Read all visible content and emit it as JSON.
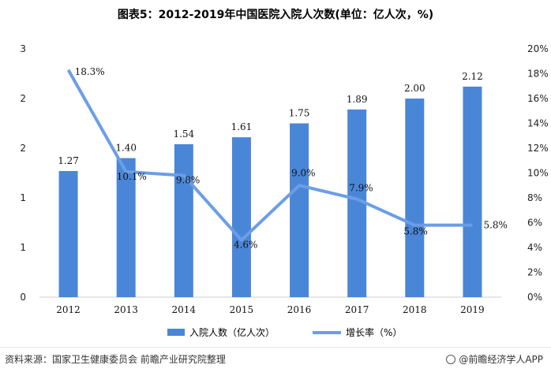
{
  "title": "图表5：2012-2019年中国医院入院人次数(单位：亿人次，%)",
  "legend": {
    "bar_label": "入院人数（亿人次）",
    "line_label": "增长率（%）"
  },
  "source": "资料来源：国家卫生健康委员会 前瞻产业研究院整理",
  "brand": "@前瞻经济学人APP",
  "colors": {
    "bar": "#4a86d8",
    "line": "#6b9ee6",
    "axis": "#cccccc"
  },
  "chart_data": {
    "type": "bar",
    "categories": [
      "2012",
      "2013",
      "2014",
      "2015",
      "2016",
      "2017",
      "2018",
      "2019"
    ],
    "series": [
      {
        "name": "入院人数（亿人次）",
        "type": "bar",
        "axis": "left",
        "values": [
          1.27,
          1.4,
          1.54,
          1.61,
          1.75,
          1.89,
          2.0,
          2.12
        ]
      },
      {
        "name": "增长率（%）",
        "type": "line",
        "axis": "right",
        "values": [
          18.3,
          10.1,
          9.8,
          4.6,
          9.0,
          7.9,
          5.8,
          5.8
        ]
      }
    ],
    "data_labels_bar": [
      "1.27",
      "1.40",
      "1.54",
      "1.61",
      "1.75",
      "1.89",
      "2.00",
      "2.12"
    ],
    "data_labels_line": [
      "18.3%",
      "10.1%",
      "9.8%",
      "4.6%",
      "9.0%",
      "7.9%",
      "5.8%",
      "5.8%"
    ],
    "y_left": {
      "range": [
        0,
        2.5
      ],
      "ticks": [
        0,
        0.5,
        1,
        1.5,
        2,
        2.5
      ],
      "tick_labels": [
        "0",
        "1",
        "1",
        "2",
        "2",
        "3"
      ]
    },
    "y_right": {
      "range": [
        0,
        20
      ],
      "ticks": [
        0,
        2,
        4,
        6,
        8,
        10,
        12,
        14,
        16,
        18,
        20
      ],
      "tick_labels": [
        "0%",
        "2%",
        "4%",
        "6%",
        "8%",
        "10%",
        "12%",
        "14%",
        "16%",
        "18%",
        "20%"
      ]
    },
    "grid": false,
    "legend_position": "bottom"
  }
}
